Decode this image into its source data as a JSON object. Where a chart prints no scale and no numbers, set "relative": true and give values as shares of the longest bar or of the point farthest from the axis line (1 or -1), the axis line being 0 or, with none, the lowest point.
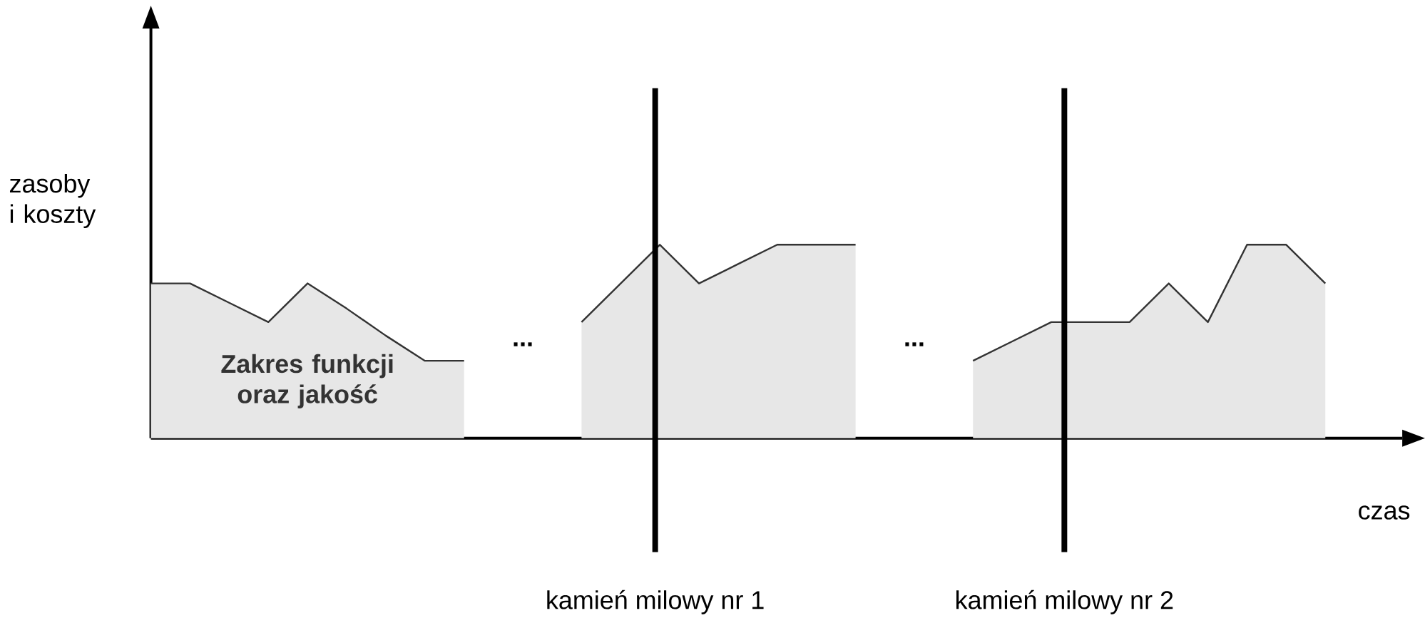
{
  "chart_data": {
    "type": "area",
    "relative": true,
    "ylabel": "zasoby i koszty",
    "xlabel": "czas",
    "categories": [
      null,
      null,
      null,
      null,
      null,
      null,
      null,
      null,
      null,
      null,
      null,
      null,
      null,
      null,
      null,
      null,
      null,
      null,
      null,
      null,
      null,
      null,
      null,
      null,
      null,
      null,
      null,
      null,
      null,
      null,
      null
    ],
    "series": [
      {
        "color": "#333333",
        "values": [
          0.8,
          0.8,
          0.7,
          0.6,
          0.8,
          0.67,
          0.53,
          0.4,
          0.4,
          null,
          null,
          null,
          null,
          null,
          null,
          null,
          null,
          null,
          null,
          null,
          null,
          null,
          null,
          null,
          null,
          null,
          null,
          null,
          null,
          null,
          null
        ]
      },
      {
        "color": "#333333",
        "values": [
          null,
          null,
          null,
          null,
          null,
          null,
          null,
          null,
          null,
          null,
          null,
          0.6,
          0.8,
          1,
          0.8,
          0.9,
          1,
          1,
          1,
          null,
          null,
          null,
          null,
          null,
          null,
          null,
          null,
          null,
          null,
          null,
          null
        ]
      },
      {
        "color": "#333333",
        "values": [
          null,
          null,
          null,
          null,
          null,
          null,
          null,
          null,
          null,
          null,
          null,
          null,
          null,
          null,
          null,
          null,
          null,
          null,
          null,
          null,
          null,
          0.4,
          0.5,
          0.6,
          0.6,
          0.6,
          0.8,
          0.6,
          1,
          1,
          0.8
        ]
      }
    ],
    "annotations": [
      "Zakres funkcji oraz jakość",
      "...",
      "...",
      "kamień milowy nr 1",
      "kamień milowy nr 2"
    ]
  }
}
